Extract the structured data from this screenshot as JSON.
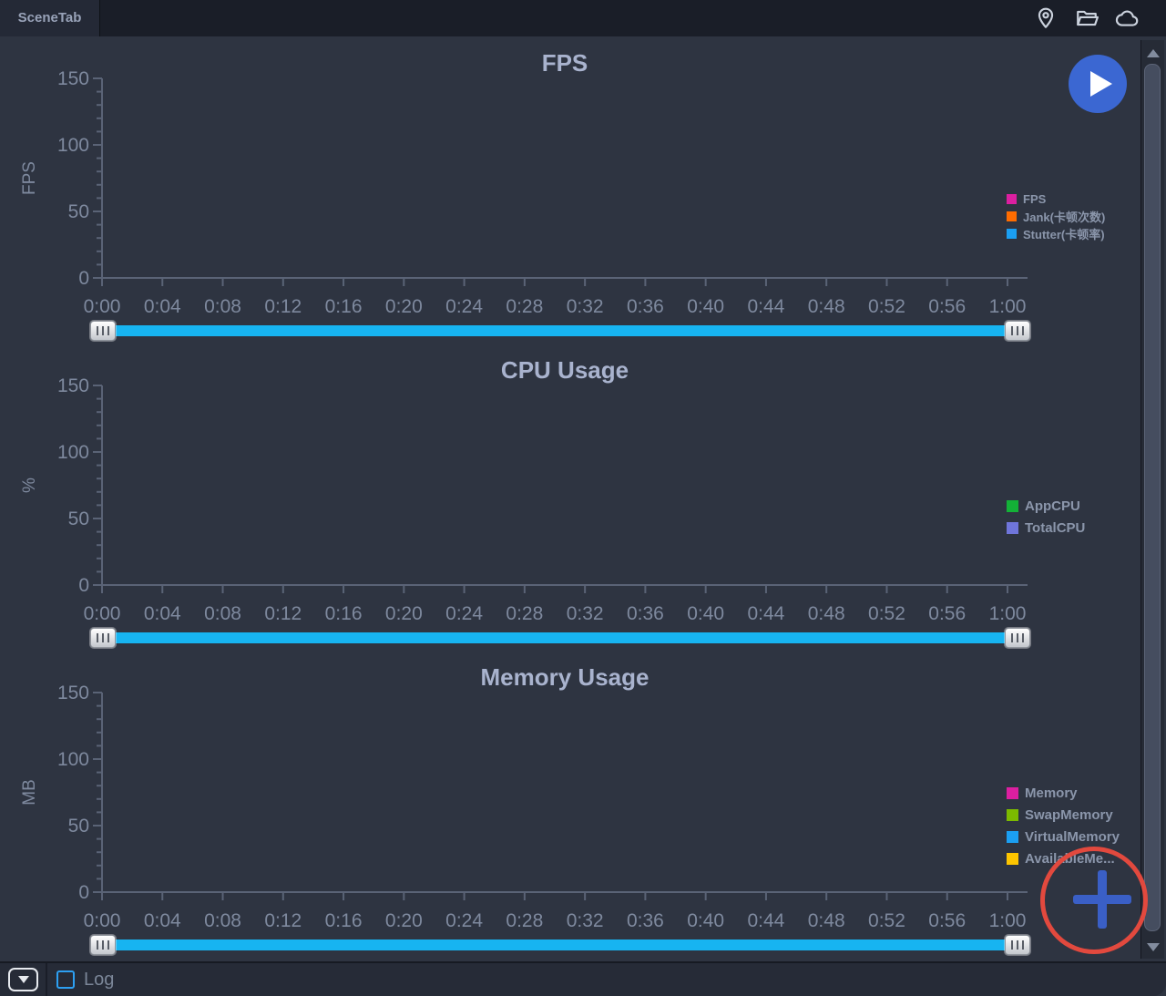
{
  "window": {
    "tab_label": "SceneTab",
    "topbar_icons": [
      "location-icon",
      "folder-icon",
      "cloud-icon"
    ]
  },
  "colors": {
    "slider_track": "#17b4f1",
    "play_button": "#3b67d2",
    "plus_button": "#3a5fc6",
    "annotation_circle": "#e2493e",
    "checkbox_accent": "#2da0f2",
    "axis": "#5a6376",
    "tick_label": "#7e899e",
    "title": "#a9b3ce",
    "legend_text": "#8b96ab"
  },
  "bottombar": {
    "log_label": "Log",
    "log_checked": false
  },
  "chart_data": [
    {
      "type": "line",
      "title": "FPS",
      "ylabel": "FPS",
      "ylim": [
        0,
        150
      ],
      "yticks": [
        0,
        50,
        100,
        150
      ],
      "y_minor_step": 10,
      "xticks": [
        "0:00",
        "0:04",
        "0:08",
        "0:12",
        "0:16",
        "0:20",
        "0:24",
        "0:28",
        "0:32",
        "0:36",
        "0:40",
        "0:44",
        "0:48",
        "0:52",
        "0:56",
        "1:00"
      ],
      "grid": false,
      "legend_position": "right",
      "series": [
        {
          "name": "FPS",
          "color": "#dc1fa0",
          "values": []
        },
        {
          "name": "Jank(卡顿次数)",
          "color": "#ff6c00",
          "values": []
        },
        {
          "name": "Stutter(卡顿率)",
          "color": "#1b9ff2",
          "values": []
        }
      ]
    },
    {
      "type": "line",
      "title": "CPU Usage",
      "ylabel": "%",
      "ylim": [
        0,
        150
      ],
      "yticks": [
        0,
        50,
        100,
        150
      ],
      "y_minor_step": 10,
      "xticks": [
        "0:00",
        "0:04",
        "0:08",
        "0:12",
        "0:16",
        "0:20",
        "0:24",
        "0:28",
        "0:32",
        "0:36",
        "0:40",
        "0:44",
        "0:48",
        "0:52",
        "0:56",
        "1:00"
      ],
      "grid": false,
      "legend_position": "right",
      "series": [
        {
          "name": "AppCPU",
          "color": "#13b137",
          "values": []
        },
        {
          "name": "TotalCPU",
          "color": "#6f75da",
          "values": []
        }
      ]
    },
    {
      "type": "line",
      "title": "Memory Usage",
      "ylabel": "MB",
      "ylim": [
        0,
        150
      ],
      "yticks": [
        0,
        50,
        100,
        150
      ],
      "y_minor_step": 10,
      "xticks": [
        "0:00",
        "0:04",
        "0:08",
        "0:12",
        "0:16",
        "0:20",
        "0:24",
        "0:28",
        "0:32",
        "0:36",
        "0:40",
        "0:44",
        "0:48",
        "0:52",
        "0:56",
        "1:00"
      ],
      "grid": false,
      "legend_position": "right",
      "series": [
        {
          "name": "Memory",
          "color": "#dc1fa0",
          "values": []
        },
        {
          "name": "SwapMemory",
          "color": "#7cba00",
          "values": []
        },
        {
          "name": "VirtualMemory",
          "color": "#1b9ff2",
          "values": []
        },
        {
          "name": "AvailableMe...",
          "color": "#fdc500",
          "values": []
        }
      ]
    }
  ]
}
